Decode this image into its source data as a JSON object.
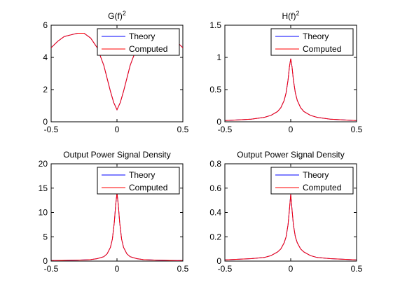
{
  "chart_data": [
    {
      "type": "line",
      "title": "G(f)",
      "title_superscript": "2",
      "xlim": [
        -0.5,
        0.5
      ],
      "ylim": [
        0,
        6
      ],
      "xticks": [
        "-0.5",
        "0",
        "0.5"
      ],
      "yticks": [
        "0",
        "2",
        "4",
        "6"
      ],
      "grid": false,
      "legend_position": "top-right",
      "series": [
        {
          "name": "Theory",
          "color": "#0000ff",
          "x": [
            -0.5,
            -0.45,
            -0.4,
            -0.35,
            -0.3,
            -0.25,
            -0.2,
            -0.15,
            -0.1,
            -0.075,
            -0.05,
            -0.025,
            0,
            0.025,
            0.05,
            0.075,
            0.1,
            0.15,
            0.2,
            0.25,
            0.3,
            0.35,
            0.4,
            0.45,
            0.5
          ],
          "y": [
            4.6,
            5.0,
            5.3,
            5.4,
            5.5,
            5.5,
            5.2,
            4.6,
            3.5,
            2.7,
            1.9,
            1.2,
            0.75,
            1.2,
            1.9,
            2.7,
            3.5,
            4.6,
            5.2,
            5.5,
            5.5,
            5.4,
            5.3,
            5.0,
            4.6
          ]
        },
        {
          "name": "Computed",
          "color": "#ff0000",
          "x": [
            -0.5,
            -0.45,
            -0.4,
            -0.35,
            -0.3,
            -0.25,
            -0.2,
            -0.15,
            -0.1,
            -0.075,
            -0.05,
            -0.025,
            0,
            0.025,
            0.05,
            0.075,
            0.1,
            0.15,
            0.2,
            0.25,
            0.3,
            0.35,
            0.4,
            0.45,
            0.5
          ],
          "y": [
            4.6,
            5.0,
            5.3,
            5.4,
            5.5,
            5.5,
            5.2,
            4.6,
            3.5,
            2.7,
            1.9,
            1.2,
            0.75,
            1.2,
            1.9,
            2.7,
            3.5,
            4.6,
            5.2,
            5.5,
            5.5,
            5.4,
            5.3,
            5.0,
            4.6
          ]
        }
      ]
    },
    {
      "type": "line",
      "title": "H(f)",
      "title_superscript": "2",
      "xlim": [
        -0.5,
        0.5
      ],
      "ylim": [
        0,
        1.5
      ],
      "xticks": [
        "-0.5",
        "0",
        "0.5"
      ],
      "yticks": [
        "0",
        "0.5",
        "1",
        "1.5"
      ],
      "grid": false,
      "legend_position": "top-right",
      "series": [
        {
          "name": "Theory",
          "color": "#0000ff",
          "x": [
            -0.5,
            -0.4,
            -0.3,
            -0.2,
            -0.15,
            -0.1,
            -0.075,
            -0.05,
            -0.035,
            -0.02,
            -0.01,
            0,
            0.01,
            0.02,
            0.035,
            0.05,
            0.075,
            0.1,
            0.15,
            0.2,
            0.3,
            0.4,
            0.5
          ],
          "y": [
            0.02,
            0.03,
            0.04,
            0.07,
            0.1,
            0.16,
            0.22,
            0.33,
            0.45,
            0.65,
            0.85,
            0.98,
            0.85,
            0.65,
            0.45,
            0.33,
            0.22,
            0.16,
            0.1,
            0.07,
            0.04,
            0.03,
            0.02
          ]
        },
        {
          "name": "Computed",
          "color": "#ff0000",
          "x": [
            -0.5,
            -0.4,
            -0.3,
            -0.2,
            -0.15,
            -0.1,
            -0.075,
            -0.05,
            -0.035,
            -0.02,
            -0.01,
            0,
            0.01,
            0.02,
            0.035,
            0.05,
            0.075,
            0.1,
            0.15,
            0.2,
            0.3,
            0.4,
            0.5
          ],
          "y": [
            0.02,
            0.03,
            0.04,
            0.07,
            0.1,
            0.16,
            0.22,
            0.33,
            0.45,
            0.65,
            0.85,
            0.98,
            0.85,
            0.65,
            0.45,
            0.33,
            0.22,
            0.16,
            0.1,
            0.07,
            0.04,
            0.03,
            0.02
          ]
        }
      ]
    },
    {
      "type": "line",
      "title": "Output Power Signal Density",
      "xlim": [
        -0.5,
        0.5
      ],
      "ylim": [
        0,
        20
      ],
      "xticks": [
        "-0.5",
        "0",
        "0.5"
      ],
      "yticks": [
        "0",
        "5",
        "10",
        "15",
        "20"
      ],
      "grid": false,
      "legend_position": "top-right",
      "series": [
        {
          "name": "Theory",
          "color": "#0000ff",
          "x": [
            -0.5,
            -0.3,
            -0.2,
            -0.15,
            -0.1,
            -0.075,
            -0.05,
            -0.035,
            -0.02,
            -0.01,
            0,
            0.01,
            0.02,
            0.035,
            0.05,
            0.075,
            0.1,
            0.15,
            0.2,
            0.3,
            0.5
          ],
          "y": [
            0.1,
            0.2,
            0.3,
            0.5,
            0.9,
            1.5,
            2.8,
            4.5,
            8,
            11.5,
            14,
            11.5,
            8,
            4.5,
            2.8,
            1.5,
            0.9,
            0.5,
            0.3,
            0.2,
            0.1
          ]
        },
        {
          "name": "Computed",
          "color": "#ff0000",
          "x": [
            -0.5,
            -0.3,
            -0.2,
            -0.15,
            -0.1,
            -0.075,
            -0.05,
            -0.035,
            -0.02,
            -0.01,
            0,
            0.01,
            0.02,
            0.035,
            0.05,
            0.075,
            0.1,
            0.15,
            0.2,
            0.3,
            0.5
          ],
          "y": [
            0.1,
            0.2,
            0.3,
            0.5,
            0.9,
            1.5,
            2.8,
            4.5,
            8,
            11.5,
            14,
            11.5,
            8,
            4.5,
            2.8,
            1.5,
            0.9,
            0.5,
            0.3,
            0.2,
            0.1
          ]
        }
      ]
    },
    {
      "type": "line",
      "title": "Output Power Signal Density",
      "xlim": [
        -0.5,
        0.5
      ],
      "ylim": [
        0,
        0.8
      ],
      "xticks": [
        "-0.5",
        "0",
        "0.5"
      ],
      "yticks": [
        "0",
        "0.2",
        "0.4",
        "0.6",
        "0.8"
      ],
      "grid": false,
      "legend_position": "top-right",
      "series": [
        {
          "name": "Theory",
          "color": "#0000ff",
          "x": [
            -0.5,
            -0.4,
            -0.3,
            -0.2,
            -0.15,
            -0.1,
            -0.075,
            -0.05,
            -0.035,
            -0.02,
            -0.01,
            0,
            0.01,
            0.02,
            0.035,
            0.05,
            0.075,
            0.1,
            0.15,
            0.2,
            0.3,
            0.4,
            0.5
          ],
          "y": [
            0.01,
            0.015,
            0.02,
            0.03,
            0.045,
            0.075,
            0.1,
            0.15,
            0.2,
            0.3,
            0.42,
            0.55,
            0.42,
            0.3,
            0.2,
            0.15,
            0.1,
            0.075,
            0.045,
            0.03,
            0.02,
            0.015,
            0.01
          ]
        },
        {
          "name": "Computed",
          "color": "#ff0000",
          "x": [
            -0.5,
            -0.4,
            -0.3,
            -0.2,
            -0.15,
            -0.1,
            -0.075,
            -0.05,
            -0.035,
            -0.02,
            -0.01,
            0,
            0.01,
            0.02,
            0.035,
            0.05,
            0.075,
            0.1,
            0.15,
            0.2,
            0.3,
            0.4,
            0.5
          ],
          "y": [
            0.01,
            0.015,
            0.02,
            0.03,
            0.045,
            0.075,
            0.1,
            0.15,
            0.2,
            0.3,
            0.42,
            0.55,
            0.42,
            0.3,
            0.2,
            0.15,
            0.1,
            0.075,
            0.045,
            0.03,
            0.02,
            0.015,
            0.01
          ]
        }
      ]
    }
  ]
}
